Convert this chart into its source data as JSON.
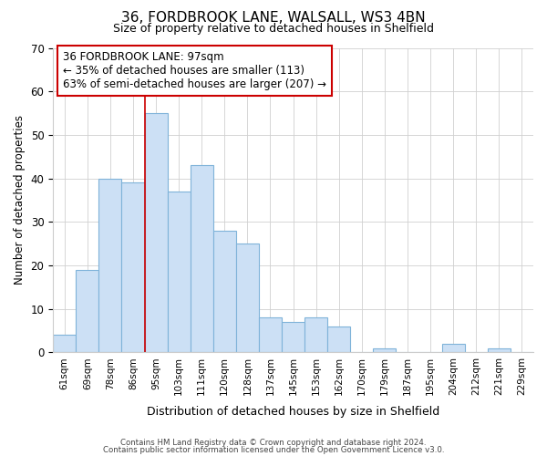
{
  "title1": "36, FORDBROOK LANE, WALSALL, WS3 4BN",
  "title2": "Size of property relative to detached houses in Shelfield",
  "xlabel": "Distribution of detached houses by size in Shelfield",
  "ylabel": "Number of detached properties",
  "bin_labels": [
    "61sqm",
    "69sqm",
    "78sqm",
    "86sqm",
    "95sqm",
    "103sqm",
    "111sqm",
    "120sqm",
    "128sqm",
    "137sqm",
    "145sqm",
    "153sqm",
    "162sqm",
    "170sqm",
    "179sqm",
    "187sqm",
    "195sqm",
    "204sqm",
    "212sqm",
    "221sqm",
    "229sqm"
  ],
  "bar_heights": [
    4,
    19,
    40,
    39,
    55,
    37,
    43,
    28,
    25,
    8,
    7,
    8,
    6,
    0,
    1,
    0,
    0,
    2,
    0,
    1,
    0
  ],
  "bar_color": "#cce0f5",
  "bar_edge_color": "#7fb3d9",
  "vline_color": "#cc0000",
  "vline_bar_index": 4,
  "annotation_title": "36 FORDBROOK LANE: 97sqm",
  "annotation_line1": "← 35% of detached houses are smaller (113)",
  "annotation_line2": "63% of semi-detached houses are larger (207) →",
  "annotation_box_edge": "#cc0000",
  "ylim": [
    0,
    70
  ],
  "yticks": [
    0,
    10,
    20,
    30,
    40,
    50,
    60,
    70
  ],
  "footer1": "Contains HM Land Registry data © Crown copyright and database right 2024.",
  "footer2": "Contains public sector information licensed under the Open Government Licence v3.0."
}
